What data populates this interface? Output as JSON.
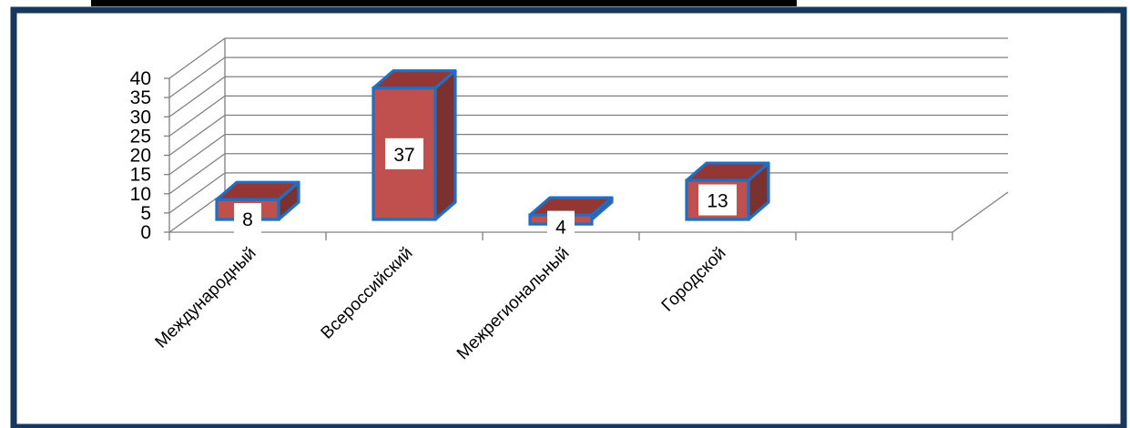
{
  "chart_data": {
    "type": "bar",
    "categories": [
      "Международный",
      "Всероссийский",
      "Межрегиональный",
      "Городской"
    ],
    "values": [
      8,
      37,
      4,
      13
    ],
    "title": "",
    "xlabel": "",
    "ylabel": "",
    "ylim": [
      0,
      40
    ],
    "yticks": [
      0,
      5,
      10,
      15,
      20,
      25,
      30,
      35,
      40
    ],
    "grid": true,
    "legend": "none",
    "style": "3d-column"
  },
  "colors": {
    "frame": "#17375e",
    "bar_front": "#c0504d",
    "bar_side": "#7b3130",
    "bar_top": "#943634",
    "bar_outline": "#1f6fc5",
    "grid": "#808080"
  }
}
